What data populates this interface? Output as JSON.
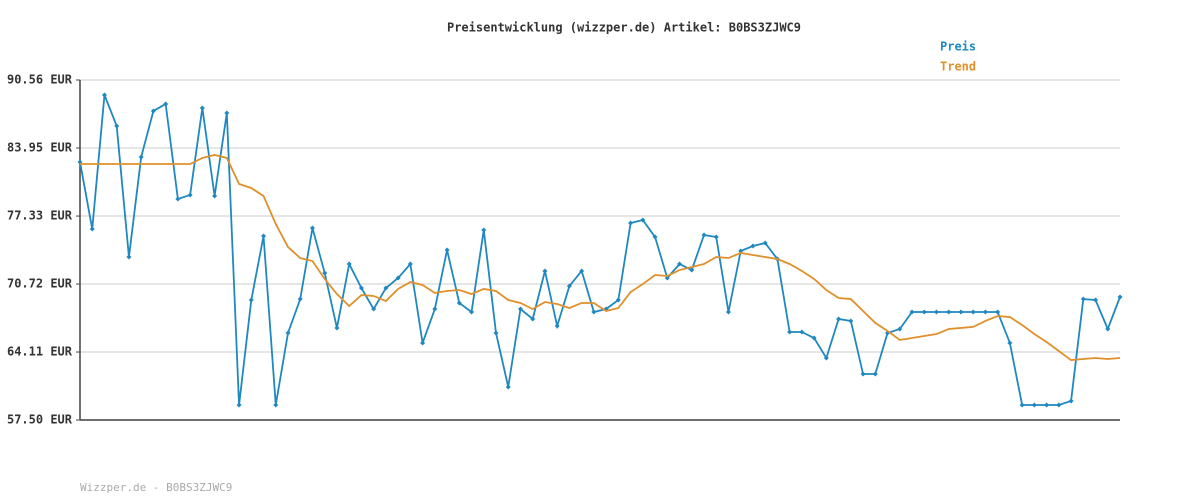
{
  "chart_data": {
    "type": "line",
    "title": "Preisentwicklung (wizzper.de) Artikel: B0BS3ZJWC9",
    "footer": "Wizzper.de - B0BS3ZJWC9",
    "categories": [
      null,
      null,
      null,
      null,
      null,
      null,
      null,
      null,
      null,
      null,
      null,
      null,
      null,
      null,
      null,
      null,
      null,
      null,
      null,
      null,
      null,
      null,
      null,
      null,
      null,
      null,
      null,
      null,
      null,
      null,
      null,
      null,
      null,
      null,
      null,
      null,
      null,
      null,
      null,
      null,
      null,
      null,
      null,
      null,
      null,
      null,
      null,
      null,
      null,
      null,
      null,
      null,
      null,
      null,
      null,
      null,
      null,
      null,
      null,
      null,
      null,
      null,
      null,
      null,
      null,
      null,
      null,
      null,
      null,
      null,
      null,
      null,
      null,
      null,
      null,
      null,
      null,
      null,
      null,
      null,
      null,
      null,
      null,
      null,
      null,
      null
    ],
    "series": [
      {
        "name": "Preis",
        "color": "#1f88c0",
        "markers": true,
        "values": [
          82.59,
          76.07,
          89.1,
          86.09,
          73.35,
          83.07,
          87.55,
          88.23,
          78.99,
          79.38,
          87.84,
          79.28,
          87.35,
          58.96,
          69.17,
          75.39,
          58.96,
          65.96,
          69.26,
          76.17,
          71.79,
          66.45,
          72.67,
          70.33,
          68.29,
          70.33,
          71.31,
          72.67,
          64.99,
          68.29,
          74.03,
          68.88,
          68.0,
          75.97,
          65.96,
          60.71,
          68.29,
          67.32,
          71.99,
          66.64,
          70.53,
          71.99,
          68.0,
          68.29,
          69.17,
          76.65,
          76.95,
          75.29,
          71.31,
          72.67,
          72.08,
          75.49,
          75.29,
          68.0,
          73.93,
          74.42,
          74.71,
          73.15,
          66.06,
          66.06,
          65.47,
          63.53,
          67.32,
          67.13,
          61.97,
          61.97,
          65.96,
          66.35,
          68.0,
          68.0,
          68.0,
          68.0,
          68.0,
          68.0,
          68.0,
          68.0,
          64.99,
          58.96,
          58.96,
          58.96,
          58.96,
          59.35,
          69.26,
          69.17,
          66.35,
          69.46
        ]
      },
      {
        "name": "Trend",
        "color": "#e0902a",
        "markers": false,
        "values": [
          82.39,
          82.39,
          82.39,
          82.39,
          82.39,
          82.39,
          82.39,
          82.39,
          82.39,
          82.39,
          82.98,
          83.27,
          82.98,
          80.45,
          80.06,
          79.28,
          76.56,
          74.32,
          73.25,
          72.96,
          71.21,
          69.75,
          68.58,
          69.65,
          69.56,
          69.07,
          70.24,
          70.92,
          70.63,
          69.85,
          70.04,
          70.14,
          69.75,
          70.24,
          70.04,
          69.17,
          68.88,
          68.29,
          68.97,
          68.78,
          68.39,
          68.88,
          68.88,
          68.1,
          68.39,
          69.94,
          70.72,
          71.6,
          71.5,
          72.08,
          72.38,
          72.67,
          73.35,
          73.25,
          73.74,
          73.54,
          73.35,
          73.15,
          72.67,
          71.99,
          71.21,
          70.14,
          69.36,
          69.26,
          68.1,
          66.94,
          66.16,
          65.28,
          65.47,
          65.67,
          65.86,
          66.35,
          66.45,
          66.55,
          67.13,
          67.61,
          67.51,
          66.74,
          65.86,
          65.08,
          64.21,
          63.33,
          63.43,
          63.53,
          63.43,
          63.53
        ]
      }
    ],
    "ylim": [
      57.5,
      90.56
    ],
    "yticks": [
      {
        "value": 57.5,
        "label": "57.50 EUR"
      },
      {
        "value": 64.11,
        "label": "64.11 EUR"
      },
      {
        "value": 70.72,
        "label": "70.72 EUR"
      },
      {
        "value": 77.33,
        "label": "77.33 EUR"
      },
      {
        "value": 83.95,
        "label": "83.95 EUR"
      },
      {
        "value": 90.56,
        "label": "90.56 EUR"
      }
    ],
    "grid": true,
    "legend": "top-right"
  }
}
